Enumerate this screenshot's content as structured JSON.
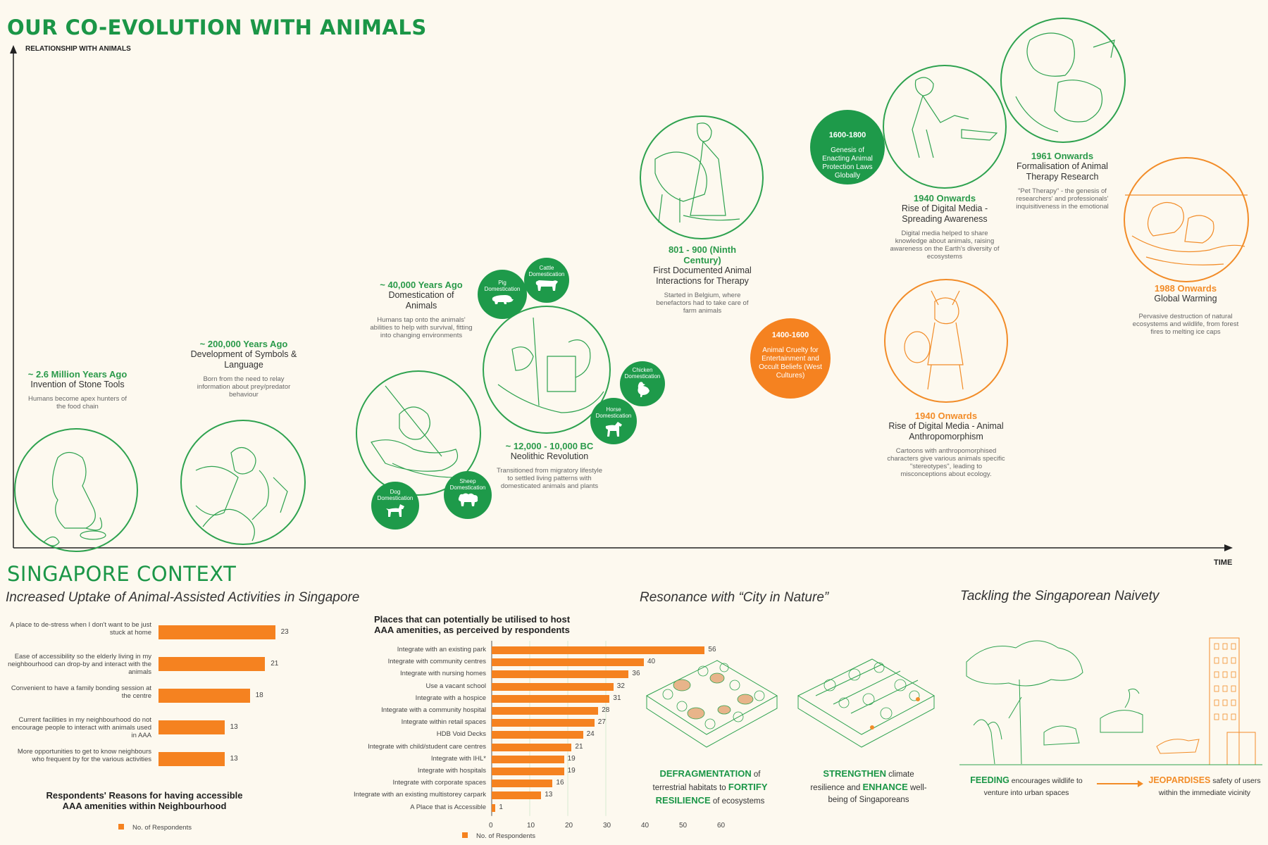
{
  "title": "OUR CO-EVOLUTION WITH ANIMALS",
  "y_axis_label": "RELATIONSHIP WITH ANIMALS",
  "x_axis_label": "TIME",
  "events": [
    {
      "date": "~ 2.6 Million Years Ago",
      "title": "Invention of Stone Tools",
      "desc": "Humans become apex hunters of the food chain"
    },
    {
      "date": "~ 200,000 Years Ago",
      "title": "Development of Symbols & Language",
      "desc": "Born from the need to relay information about prey/predator behaviour"
    },
    {
      "date": "~ 40,000 Years Ago",
      "title": "Domestication of Animals",
      "desc": "Humans tap onto the animals' abilities to help with survival, fitting into changing environments"
    },
    {
      "date": "~ 12,000 - 10,000 BC",
      "title": "Neolithic Revolution",
      "desc": "Transitioned from migratory lifestyle to settled living patterns with domesticated animals and plants"
    },
    {
      "date": "801 - 900 (Ninth Century)",
      "title": "First Documented Animal Interactions for Therapy",
      "desc": "Started in Belgium, where benefactors had to take care of farm animals"
    },
    {
      "date": "1940 Onwards",
      "title": "Rise of Digital Media - Spreading Awareness",
      "desc": "Digital media helped to share knowledge about animals, raising awareness on the Earth's diversity of ecosystems"
    },
    {
      "date": "1961 Onwards",
      "title": "Formalisation of Animal Therapy Research",
      "desc": "\"Pet Therapy\" - the genesis of researchers' and professionals' inquisitiveness in the emotional"
    },
    {
      "date": "1988 Onwards",
      "title": "Global Warming",
      "desc": "Pervasive destruction of natural ecosystems and wildlife, from forest fires to melting ice caps"
    },
    {
      "date": "1940 Onwards",
      "title": "Rise of Digital Media - Animal Anthropomorphism",
      "desc": "Cartoons with anthropomorphised characters give various animals specific \"stereotypes\", leading to misconceptions about ecology."
    }
  ],
  "badges": [
    {
      "date": "1600-1800",
      "text": "Genesis of Enacting Animal Protection Laws Globally",
      "color": "#1e9a4a"
    },
    {
      "date": "1400-1600",
      "text": "Animal Cruelty for Entertainment and Occult Beliefs (West Cultures)",
      "color": "#f58220"
    }
  ],
  "domestication": [
    {
      "label": "Pig Domestication",
      "icon": "pig-icon"
    },
    {
      "label": "Cattle Domestication",
      "icon": "cattle-icon"
    },
    {
      "label": "Chicken Domestication",
      "icon": "chicken-icon"
    },
    {
      "label": "Horse Domestication",
      "icon": "horse-icon"
    },
    {
      "label": "Dog Domestication",
      "icon": "dog-icon"
    },
    {
      "label": "Sheep Domestication",
      "icon": "sheep-icon"
    }
  ],
  "sg": {
    "heading": "SINGAPORE CONTEXT",
    "sub1": "Increased Uptake of Animal-Assisted Activities in Singapore",
    "sub2": "Resonance with “City in Nature”",
    "sub3": "Tackling the Singaporean Naivety",
    "defrag": {
      "w1": "DEFRAGMENTATION",
      "t1": " of terrestrial habitats to ",
      "w2": "FORTIFY RESILIENCE",
      "t2": " of ecosystems"
    },
    "strength": {
      "w1": "STRENGTHEN",
      "t1": " climate resilience and ",
      "w2": "ENHANCE",
      "t2": " well-being of Singaporeans"
    },
    "feeding": {
      "w1": "FEEDING",
      "t1": " encourages wildlife to venture into urban spaces"
    },
    "jeopard": {
      "w1": "JEOPARDISES",
      "t1": " safety of users within the immediate vicinity"
    }
  },
  "chart_data": [
    {
      "type": "bar",
      "title": "Respondents' Reasons for having accessible AAA amenities within Neighbourhood",
      "categories": [
        "A place to de-stress when I don't want to be just stuck at home",
        "Ease of accessibility so the elderly living in my neighbourhood can drop-by and interact with the animals",
        "Convenient to have a family bonding session at the centre",
        "Current facilities in my neighbourhood do not encourage people to interact with animals used in AAA",
        "More opportunities to get to know neighbours who frequent by for the various activities"
      ],
      "values": [
        23,
        21,
        18,
        13,
        13
      ],
      "legend": "No. of Respondents",
      "orientation": "horizontal"
    },
    {
      "type": "bar",
      "title": "Places that can potentially be utilised to host AAA amenities, as perceived by respondents",
      "categories": [
        "Integrate with an existing park",
        "Integrate with community centres",
        "Integrate with nursing homes",
        "Use a vacant school",
        "Integrate with a hospice",
        "Integrate with a community hospital",
        "Integrate within retail spaces",
        "HDB Void Decks",
        "Integrate with child/student care centres",
        "Integrate with IHL*",
        "Integrate with hospitals",
        "Integrate with corporate spaces",
        "Integrate with an existing multistorey carpark",
        "A Place that is Accessible"
      ],
      "values": [
        56,
        40,
        36,
        32,
        31,
        28,
        27,
        24,
        21,
        19,
        19,
        16,
        13,
        1
      ],
      "ticks": [
        "0",
        "10",
        "20",
        "30",
        "40",
        "50",
        "60"
      ],
      "xlim": [
        0,
        60
      ],
      "legend": "No. of Respondents",
      "orientation": "horizontal"
    }
  ]
}
